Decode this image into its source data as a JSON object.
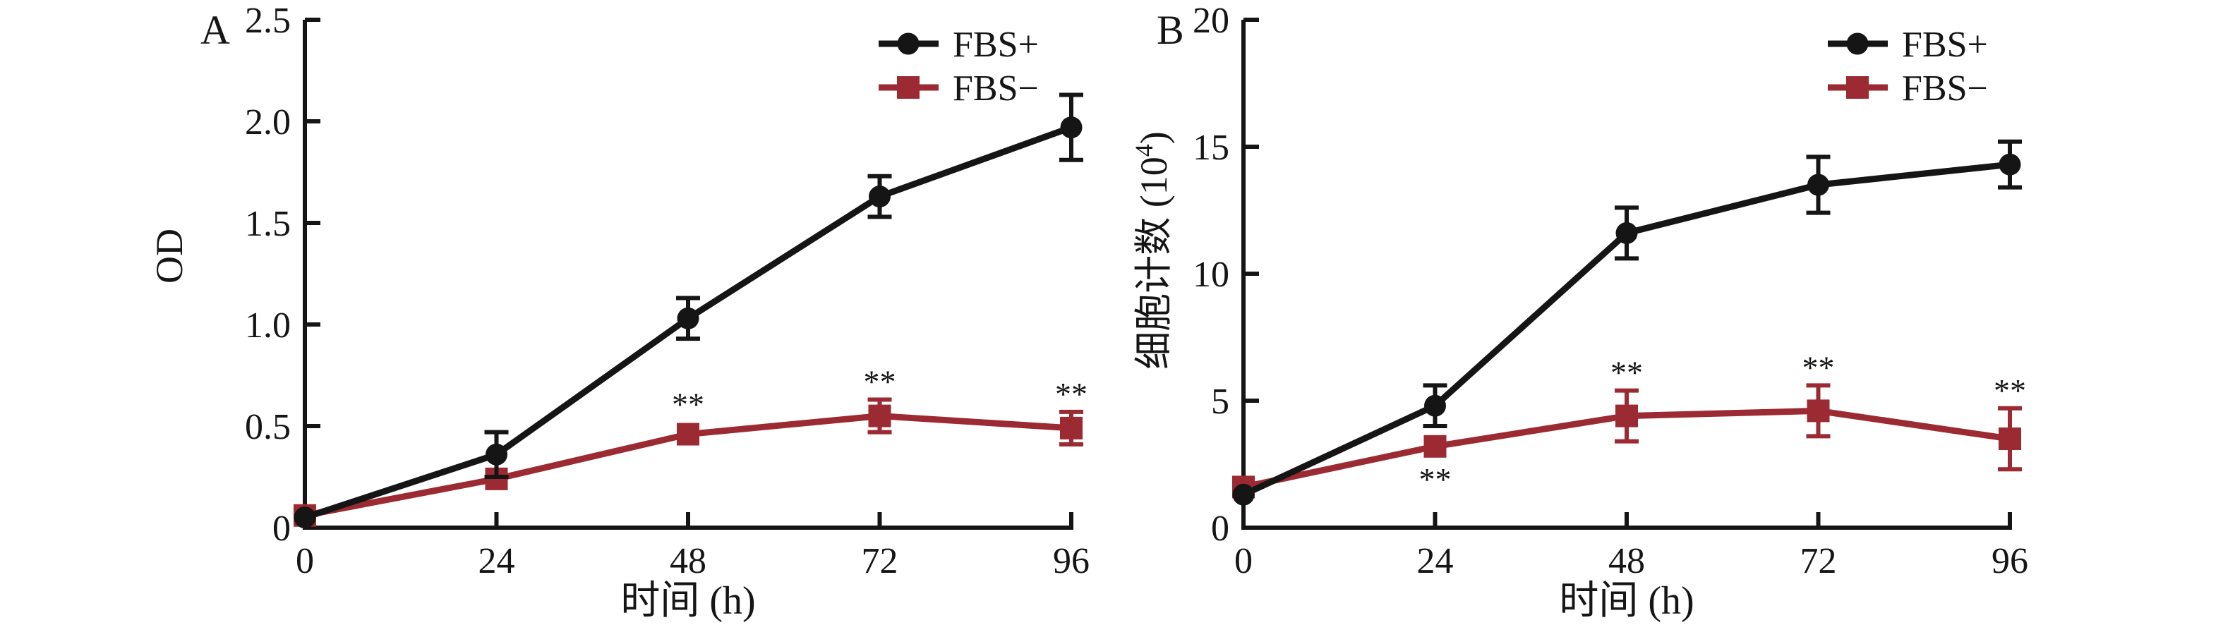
{
  "colors": {
    "fbs_plus": "#151515",
    "fbs_minus": "#9c2a32",
    "axis": "#151515",
    "significance": "#222222",
    "background": "#ffffff"
  },
  "chart_data": [
    {
      "type": "line",
      "panel_label": "A",
      "title": "",
      "x": [
        0,
        24,
        48,
        72,
        96
      ],
      "x_tick_labels": [
        "0",
        "24",
        "48",
        "72",
        "96"
      ],
      "xlim": [
        0,
        96
      ],
      "xlabel": "时间 (h)",
      "y_ticks": [
        0,
        0.5,
        1.0,
        1.5,
        2.0,
        2.5
      ],
      "y_tick_labels": [
        "0",
        "0.5",
        "1.0",
        "1.5",
        "2.0",
        "2.5"
      ],
      "ylim": [
        0,
        2.5
      ],
      "ylabel_parts": [
        "OD",
        "",
        ""
      ],
      "grid": false,
      "legend_position": "top-right",
      "legend": [
        {
          "label": "FBS+",
          "marker": "circle",
          "color_key": "fbs_plus"
        },
        {
          "label": "FBS−",
          "marker": "square",
          "color_key": "fbs_minus"
        }
      ],
      "series": [
        {
          "name": "FBS−",
          "marker": "square",
          "color_key": "fbs_minus",
          "values": [
            0.06,
            0.24,
            0.46,
            0.55,
            0.49
          ],
          "errors": [
            0,
            0,
            0,
            0.08,
            0.08
          ],
          "significance": [
            {
              "index": 2,
              "text": "**",
              "position": "above"
            },
            {
              "index": 3,
              "text": "**",
              "position": "above"
            },
            {
              "index": 4,
              "text": "**",
              "position": "above"
            }
          ]
        },
        {
          "name": "FBS+",
          "marker": "circle",
          "color_key": "fbs_plus",
          "values": [
            0.05,
            0.36,
            1.03,
            1.63,
            1.97
          ],
          "errors": [
            0,
            0.11,
            0.1,
            0.1,
            0.16
          ],
          "significance": []
        }
      ]
    },
    {
      "type": "line",
      "panel_label": "B",
      "title": "",
      "x": [
        0,
        24,
        48,
        72,
        96
      ],
      "x_tick_labels": [
        "0",
        "24",
        "48",
        "72",
        "96"
      ],
      "xlim": [
        0,
        96
      ],
      "xlabel": "时间 (h)",
      "y_ticks": [
        0,
        5,
        10,
        15,
        20
      ],
      "y_tick_labels": [
        "0",
        "5",
        "10",
        "15",
        "20"
      ],
      "ylim": [
        0,
        20
      ],
      "ylabel_parts": [
        "细胞计数 (10",
        "4",
        ")"
      ],
      "grid": false,
      "legend_position": "top-right",
      "legend": [
        {
          "label": "FBS+",
          "marker": "circle",
          "color_key": "fbs_plus"
        },
        {
          "label": "FBS−",
          "marker": "square",
          "color_key": "fbs_minus"
        }
      ],
      "series": [
        {
          "name": "FBS−",
          "marker": "square",
          "color_key": "fbs_minus",
          "values": [
            1.6,
            3.2,
            4.4,
            4.6,
            3.5
          ],
          "errors": [
            0,
            0,
            1.0,
            1.0,
            1.2
          ],
          "significance": [
            {
              "index": 1,
              "text": "**",
              "position": "below"
            },
            {
              "index": 2,
              "text": "**",
              "position": "above"
            },
            {
              "index": 3,
              "text": "**",
              "position": "above"
            },
            {
              "index": 4,
              "text": "**",
              "position": "above"
            }
          ]
        },
        {
          "name": "FBS+",
          "marker": "circle",
          "color_key": "fbs_plus",
          "values": [
            1.3,
            4.8,
            11.6,
            13.5,
            14.3
          ],
          "errors": [
            0,
            0.8,
            1.0,
            1.1,
            0.9
          ],
          "significance": []
        }
      ]
    }
  ]
}
